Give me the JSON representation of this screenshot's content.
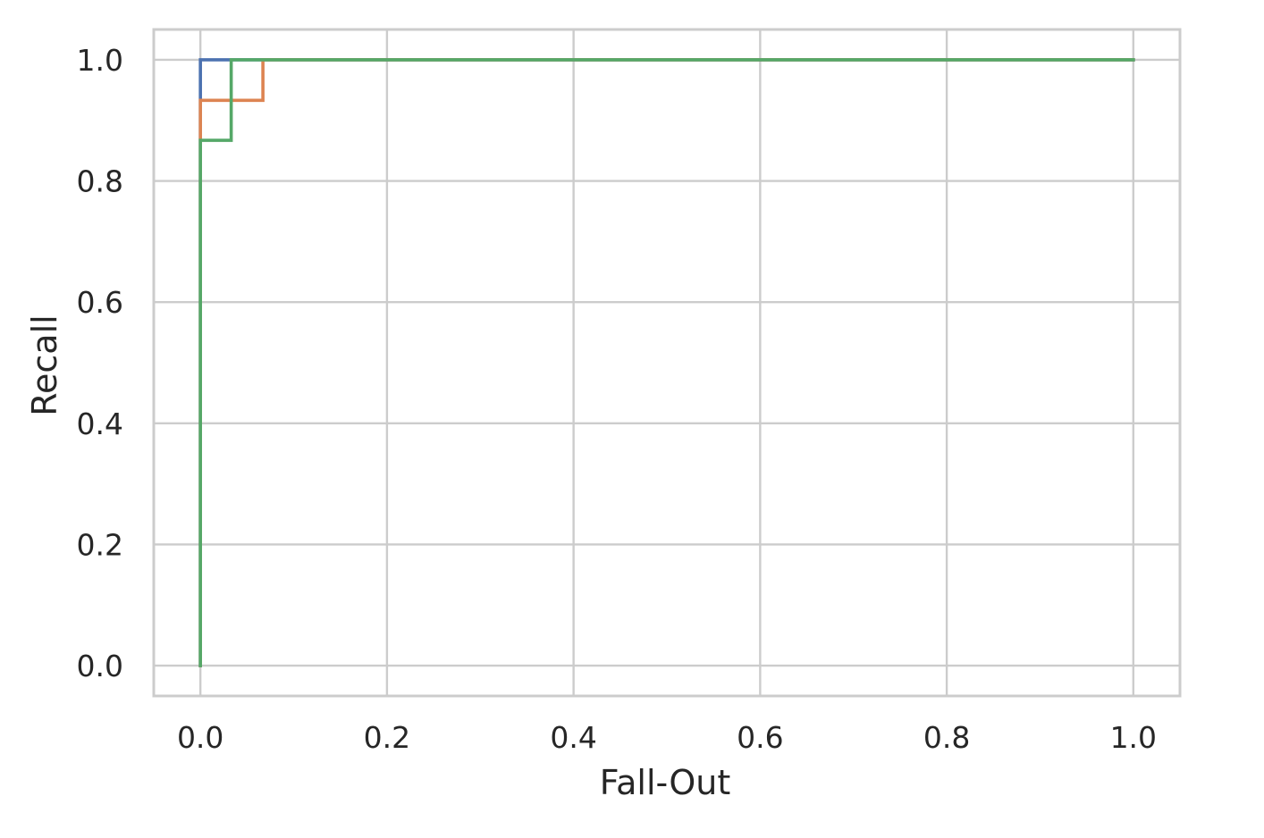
{
  "chart_data": {
    "type": "line",
    "title": "",
    "xlabel": "Fall-Out",
    "ylabel": "Recall",
    "xlim": [
      -0.05,
      1.05
    ],
    "ylim": [
      -0.05,
      1.05
    ],
    "xticks": [
      "0.0",
      "0.2",
      "0.4",
      "0.6",
      "0.8",
      "1.0"
    ],
    "yticks": [
      "0.0",
      "0.2",
      "0.4",
      "0.6",
      "0.8",
      "1.0"
    ],
    "grid": true,
    "legend": "none",
    "series": [
      {
        "color": "#4c72b0",
        "step": true,
        "points": [
          [
            0.0,
            0.0
          ],
          [
            0.0,
            0.933
          ],
          [
            0.0,
            1.0
          ],
          [
            0.033,
            1.0
          ],
          [
            1.0,
            1.0
          ]
        ]
      },
      {
        "color": "#dd8452",
        "step": true,
        "points": [
          [
            0.0,
            0.0
          ],
          [
            0.0,
            0.933
          ],
          [
            0.067,
            0.933
          ],
          [
            0.067,
            1.0
          ],
          [
            1.0,
            1.0
          ]
        ]
      },
      {
        "color": "#55a868",
        "step": true,
        "points": [
          [
            0.0,
            0.0
          ],
          [
            0.0,
            0.867
          ],
          [
            0.033,
            0.867
          ],
          [
            0.033,
            1.0
          ],
          [
            1.0,
            1.0
          ]
        ]
      }
    ]
  }
}
